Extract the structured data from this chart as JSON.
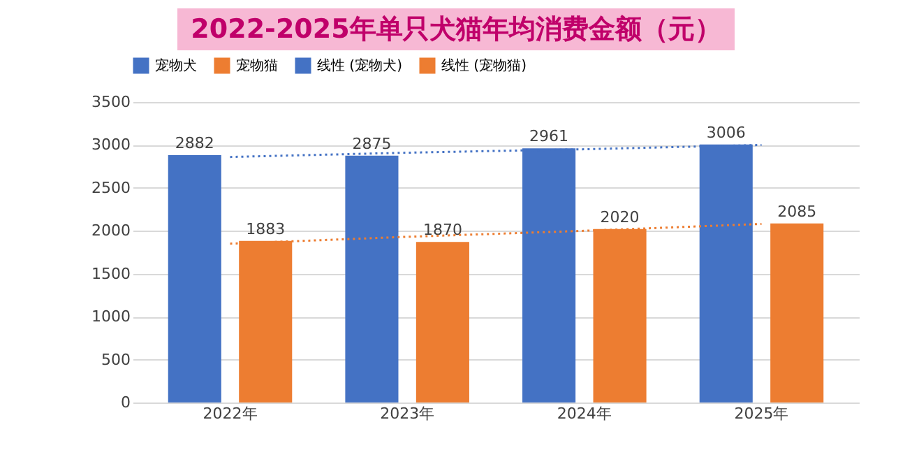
{
  "chart_data": {
    "type": "bar",
    "title": "2022-2025年单只犬猫年均消费金额（元）",
    "categories": [
      "2022年",
      "2023年",
      "2024年",
      "2025年"
    ],
    "series": [
      {
        "name": "宠物犬",
        "color": "#4472c4",
        "values": [
          2882,
          2875,
          2961,
          3006
        ],
        "value_labels": [
          "2882",
          "2875",
          "2961",
          "3006"
        ]
      },
      {
        "name": "宠物猫",
        "color": "#ed7d31",
        "values": [
          1883,
          1870,
          2020,
          2085
        ],
        "value_labels": [
          "1883",
          "1870",
          "2020",
          "2085"
        ]
      },
      {
        "name": "线性 (宠物犬)",
        "type": "line",
        "line_style": "dotted",
        "color": "#4472c4",
        "values": [
          2860,
          2910,
          2950,
          3000
        ]
      },
      {
        "name": "线性 (宠物猫)",
        "type": "line",
        "line_style": "dotted",
        "color": "#ed7d31",
        "values": [
          1850,
          1930,
          2000,
          2080
        ]
      }
    ],
    "ylim": [
      0,
      3500
    ],
    "yticks": [
      0,
      500,
      1000,
      1500,
      2000,
      2500,
      3000,
      3500
    ],
    "grid": "y",
    "legend": "top"
  }
}
